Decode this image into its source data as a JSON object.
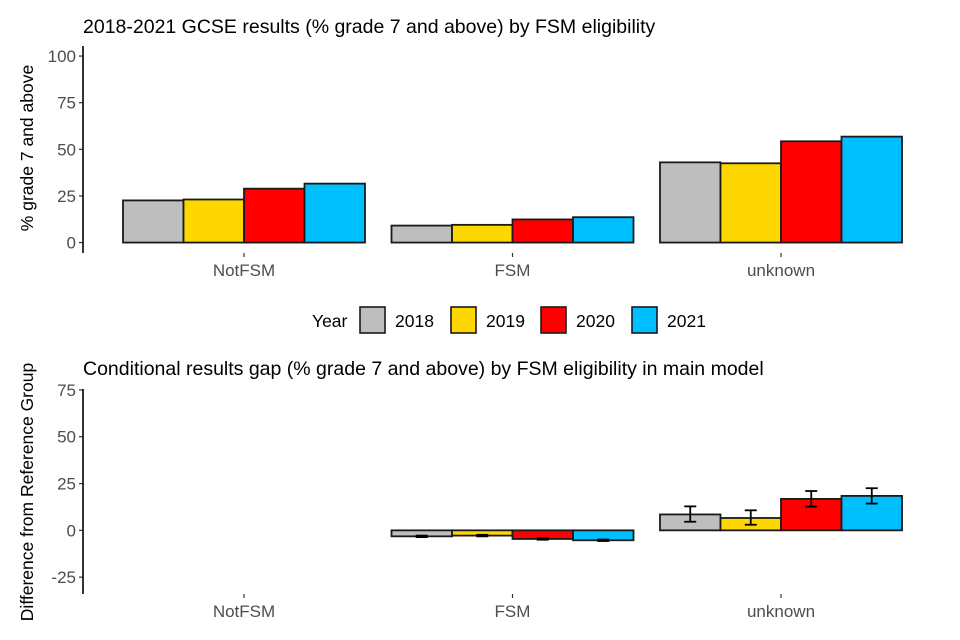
{
  "chart_data": [
    {
      "type": "bar",
      "title": "2018-2021 GCSE results (% grade 7 and above) by FSM eligibility",
      "xlabel": "",
      "ylabel": "% grade 7 and above",
      "ylim": [
        -5.6,
        105.4
      ],
      "yticks": [
        0,
        25,
        50,
        75,
        100
      ],
      "ytick_labels": [
        "0",
        "25",
        "50",
        "75",
        "100"
      ],
      "grid": false,
      "categories": [
        "NotFSM",
        "FSM",
        "unknown"
      ],
      "series": [
        {
          "name": "2018",
          "color": "#BEBEBE",
          "values": [
            22.6,
            9.1,
            43.0
          ]
        },
        {
          "name": "2019",
          "color": "#FFD700",
          "values": [
            23.1,
            9.5,
            42.5
          ]
        },
        {
          "name": "2020",
          "color": "#FF0000",
          "values": [
            28.9,
            12.4,
            54.3
          ]
        },
        {
          "name": "2021",
          "color": "#00BFFF",
          "values": [
            31.6,
            13.6,
            56.8
          ]
        }
      ]
    },
    {
      "type": "bar",
      "title": "Conditional results gap (% grade 7 and above) by FSM eligibility in main model",
      "xlabel": "",
      "ylabel": "Difference from Reference Group",
      "ylim": [
        -34,
        75.5
      ],
      "yticks": [
        -25,
        0,
        25,
        50,
        75
      ],
      "ytick_labels": [
        "-25",
        "0",
        "25",
        "50",
        "75"
      ],
      "grid": false,
      "categories": [
        "NotFSM",
        "FSM",
        "unknown"
      ],
      "error_bars": true,
      "series": [
        {
          "name": "2018",
          "color": "#BEBEBE",
          "values": [
            null,
            -3.2,
            8.5
          ],
          "lower": [
            null,
            -3.6,
            4.6
          ],
          "upper": [
            null,
            -2.8,
            12.8
          ]
        },
        {
          "name": "2019",
          "color": "#FFD700",
          "values": [
            null,
            -2.8,
            6.6
          ],
          "lower": [
            null,
            -3.2,
            3.0
          ],
          "upper": [
            null,
            -2.4,
            10.7
          ]
        },
        {
          "name": "2020",
          "color": "#FF0000",
          "values": [
            null,
            -4.6,
            16.8
          ],
          "lower": [
            null,
            -5.0,
            12.7
          ],
          "upper": [
            null,
            -4.2,
            21.0
          ]
        },
        {
          "name": "2021",
          "color": "#00BFFF",
          "values": [
            null,
            -5.3,
            18.4
          ],
          "lower": [
            null,
            -5.7,
            14.3
          ],
          "upper": [
            null,
            -4.9,
            22.5
          ]
        }
      ]
    }
  ],
  "legend": {
    "title": "Year",
    "placement": "center, between panels",
    "items": [
      {
        "label": "2018",
        "color": "#BEBEBE"
      },
      {
        "label": "2019",
        "color": "#FFD700"
      },
      {
        "label": "2020",
        "color": "#FF0000"
      },
      {
        "label": "2021",
        "color": "#00BFFF"
      }
    ]
  }
}
